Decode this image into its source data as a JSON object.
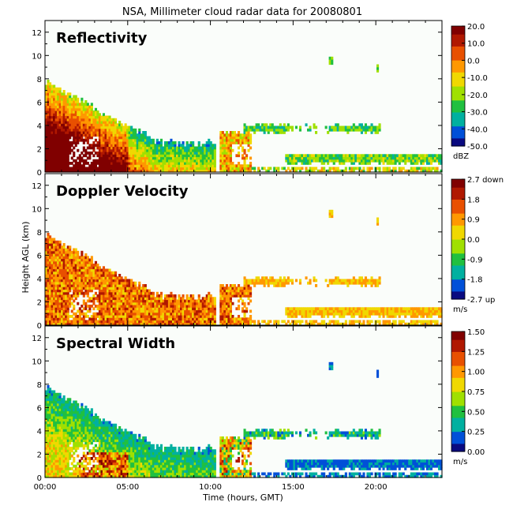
{
  "chart_data": {
    "type": "heatmap",
    "title": "NSA, Millimeter cloud radar data for 20080801",
    "xlabel": "Time (hours, GMT)",
    "ylabel": "Height AGL (km)",
    "x_range": [
      0,
      24
    ],
    "x_ticks": [
      "00:00",
      "05:00",
      "10:00",
      "15:00",
      "20:00"
    ],
    "x_tick_values": [
      0,
      5,
      10,
      15,
      20
    ],
    "y_range": [
      0,
      13
    ],
    "y_ticks": [
      0,
      2,
      4,
      6,
      8,
      10,
      12
    ],
    "y_tick_labels": [
      "0",
      "2",
      "4",
      "6",
      "8",
      "10",
      "12"
    ],
    "data_gap_hours": [
      10.3,
      10.55
    ],
    "panels": [
      {
        "title": "Reflectivity",
        "colorbar_ticks": [
          "20.0",
          "10.0",
          "0.0",
          "-10.0",
          "-20.0",
          "-30.0",
          "-40.0",
          "-50.0"
        ],
        "colorbar_range": [
          -50,
          20
        ],
        "unit": "dBZ",
        "colors": [
          "#0a0a80",
          "#0050d8",
          "#00b0a0",
          "#20c040",
          "#a0e000",
          "#f0d800",
          "#ff9800",
          "#e85000",
          "#b01800",
          "#800000"
        ]
      },
      {
        "title": "Doppler Velocity",
        "colorbar_ticks": [
          "2.7 down",
          "1.8",
          "0.9",
          "0.0",
          "-0.9",
          "-1.8",
          "-2.7 up"
        ],
        "colorbar_range": [
          -2.7,
          2.7
        ],
        "unit": "m/s",
        "colors": [
          "#0a0a80",
          "#0050d8",
          "#00b0a0",
          "#20c040",
          "#a0e000",
          "#f0d800",
          "#ff9800",
          "#e85000",
          "#b01800",
          "#800000"
        ]
      },
      {
        "title": "Spectral Width",
        "colorbar_ticks": [
          "1.50",
          "1.25",
          "1.00",
          "0.75",
          "0.50",
          "0.25",
          "0.00"
        ],
        "colorbar_range": [
          0,
          1.5
        ],
        "unit": "m/s",
        "colors": [
          "#0a0a80",
          "#0050d8",
          "#00b0a0",
          "#20c040",
          "#a0e000",
          "#f0d800",
          "#ff9800",
          "#e85000",
          "#b01800",
          "#800000"
        ]
      }
    ],
    "cloud_regions_km": [
      {
        "name": "low-dense-layer",
        "x0": 0,
        "x1": 10.3,
        "top_start": 7.8,
        "top_end": 2.5
      },
      {
        "name": "post-gap-column",
        "x0": 10.55,
        "x1": 12.5,
        "top": 3.4
      },
      {
        "name": "mid-layer",
        "x0": 12,
        "x1": 20.3,
        "y0": 3.3,
        "y1": 4.2
      },
      {
        "name": "low-layer",
        "x0": 14.5,
        "x1": 24,
        "y0": 0.6,
        "y1": 1.6
      },
      {
        "name": "surface-layer",
        "x0": 10.55,
        "x1": 24,
        "y0": 0,
        "y1": 0.5
      },
      {
        "name": "isolated-17h",
        "x0": 17.2,
        "x1": 17.35,
        "y0": 9.2,
        "y1": 9.9
      },
      {
        "name": "isolated-20h",
        "x0": 20.05,
        "x1": 20.2,
        "y0": 8.6,
        "y1": 9.2
      }
    ]
  }
}
